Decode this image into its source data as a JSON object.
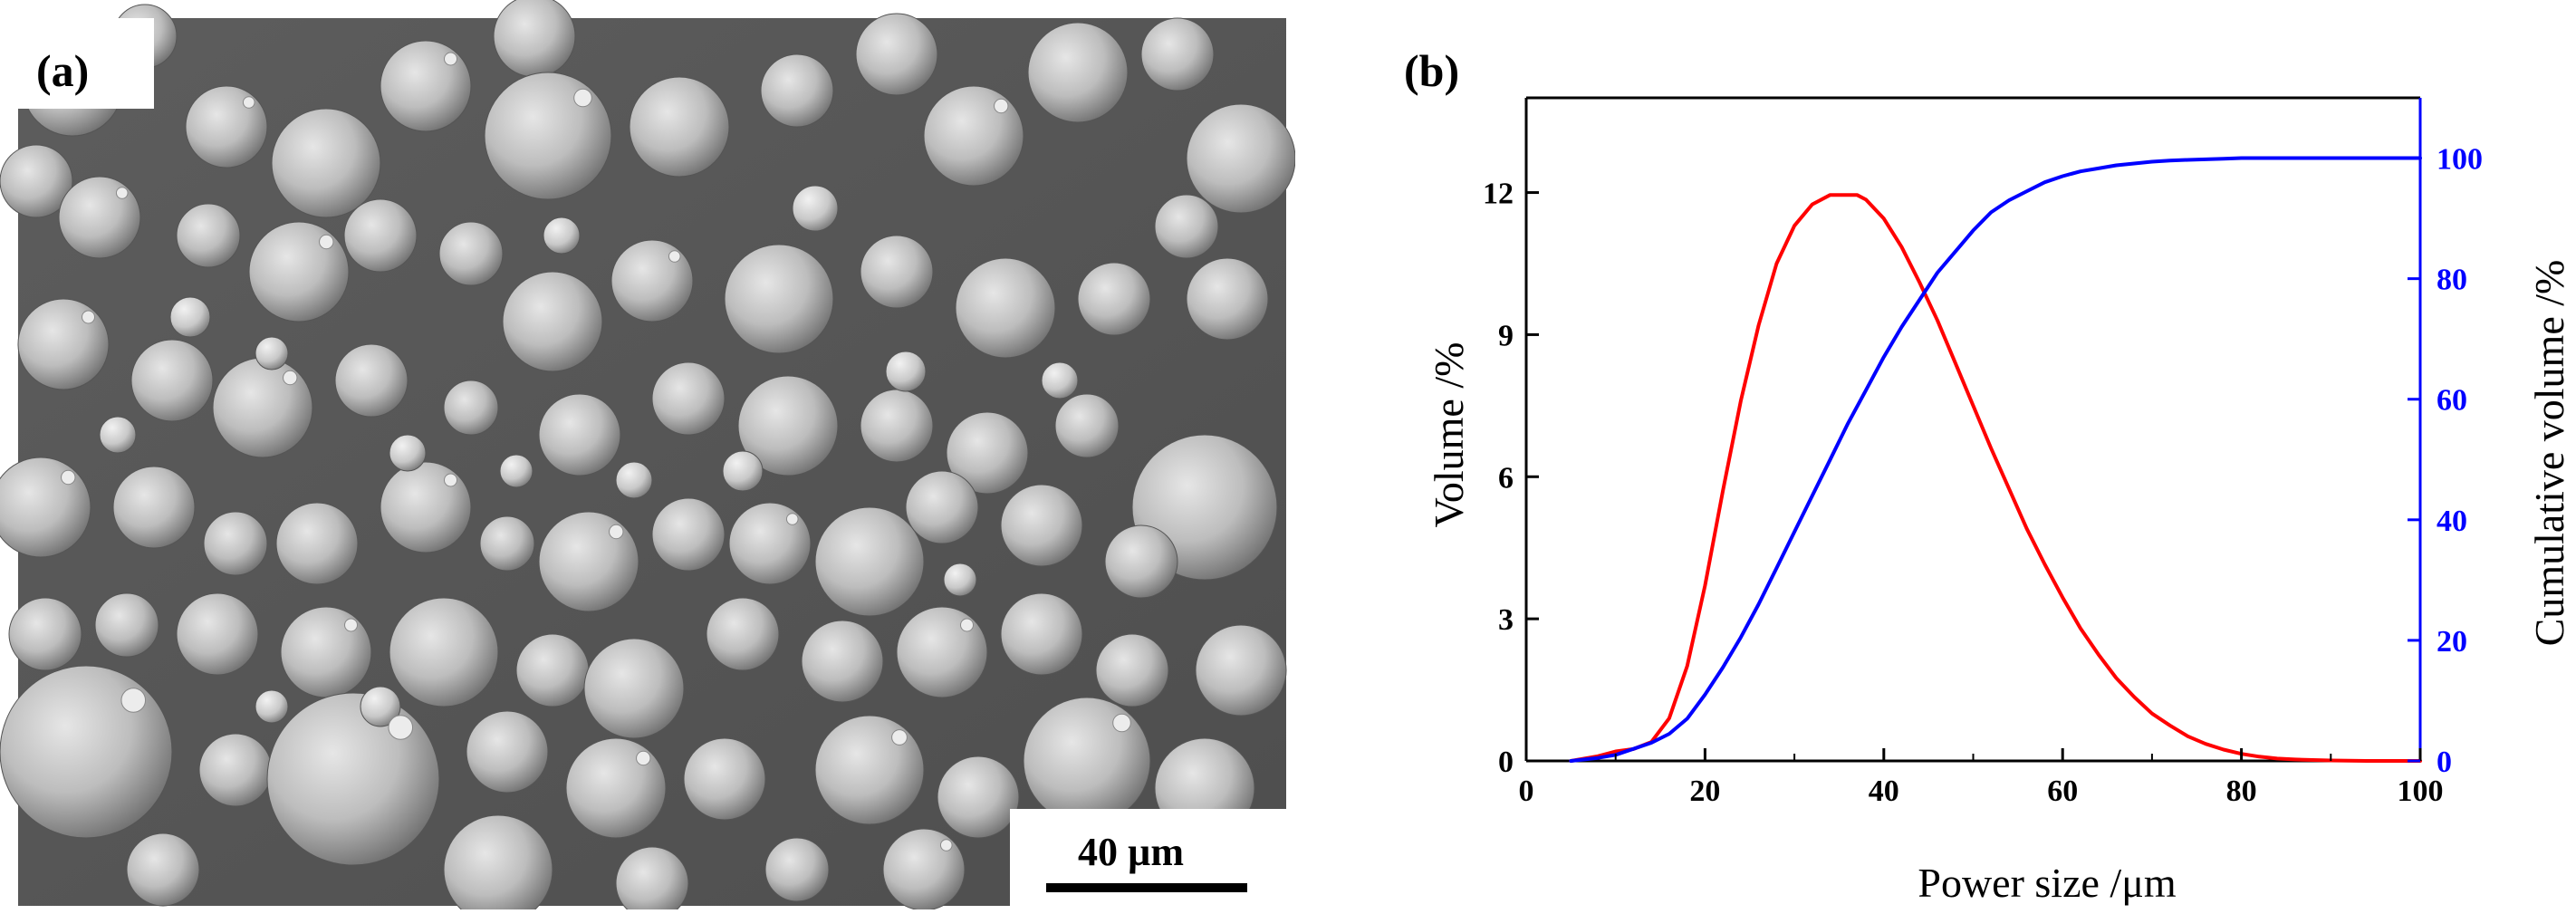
{
  "panel_a": {
    "label": "(a)",
    "scale_bar": {
      "label": "40 µm"
    }
  },
  "panel_b": {
    "label": "(b)"
  },
  "chart_data": {
    "type": "line",
    "xlabel": "Power size /μm",
    "ylabel_left": "Volume /%",
    "ylabel_right": "Cumulative volume /%",
    "xlim": [
      0,
      100
    ],
    "ylim_left": [
      0,
      14
    ],
    "ylim_right": [
      0,
      110
    ],
    "x_ticks": [
      0,
      20,
      40,
      60,
      80,
      100
    ],
    "y_ticks_left": [
      0,
      3,
      6,
      9,
      12
    ],
    "y_ticks_right": [
      0,
      20,
      40,
      60,
      80,
      100
    ],
    "grid": false,
    "colors": {
      "volume": "#ff0000",
      "cumulative": "#0000ff"
    },
    "series": [
      {
        "axis": "left",
        "color": "#ff0000",
        "x": [
          5,
          8,
          10,
          12,
          14,
          16,
          18,
          20,
          22,
          24,
          26,
          28,
          30,
          32,
          34,
          36,
          37,
          38,
          40,
          42,
          44,
          46,
          48,
          50,
          52,
          54,
          56,
          58,
          60,
          62,
          64,
          66,
          68,
          70,
          72,
          74,
          76,
          78,
          80,
          82,
          84,
          86,
          88,
          90,
          92,
          94,
          96,
          98,
          100
        ],
        "values": [
          0,
          0.1,
          0.2,
          0.25,
          0.4,
          0.9,
          2.0,
          3.7,
          5.7,
          7.6,
          9.2,
          10.5,
          11.3,
          11.75,
          11.95,
          11.95,
          11.95,
          11.85,
          11.45,
          10.85,
          10.1,
          9.3,
          8.4,
          7.5,
          6.6,
          5.75,
          4.9,
          4.15,
          3.45,
          2.8,
          2.25,
          1.75,
          1.35,
          1.0,
          0.75,
          0.52,
          0.36,
          0.24,
          0.15,
          0.09,
          0.05,
          0.03,
          0.02,
          0.01,
          0.005,
          0,
          0,
          0,
          0
        ]
      },
      {
        "axis": "right",
        "color": "#0000ff",
        "x": [
          5,
          8,
          10,
          12,
          14,
          16,
          18,
          20,
          22,
          24,
          26,
          28,
          30,
          32,
          34,
          36,
          38,
          40,
          42,
          44,
          46,
          48,
          50,
          52,
          54,
          56,
          58,
          60,
          62,
          64,
          66,
          68,
          70,
          72,
          74,
          76,
          78,
          80,
          85,
          90,
          95,
          100
        ],
        "values": [
          0,
          0.5,
          1,
          2,
          3,
          4.5,
          7,
          11,
          15.5,
          20.5,
          26,
          32,
          38,
          44,
          50,
          56,
          61.5,
          67,
          72,
          76.5,
          81,
          84.5,
          88,
          91,
          93,
          94.5,
          96,
          97,
          97.8,
          98.3,
          98.8,
          99.1,
          99.4,
          99.6,
          99.7,
          99.8,
          99.9,
          100,
          100,
          100,
          100,
          100
        ]
      }
    ]
  }
}
